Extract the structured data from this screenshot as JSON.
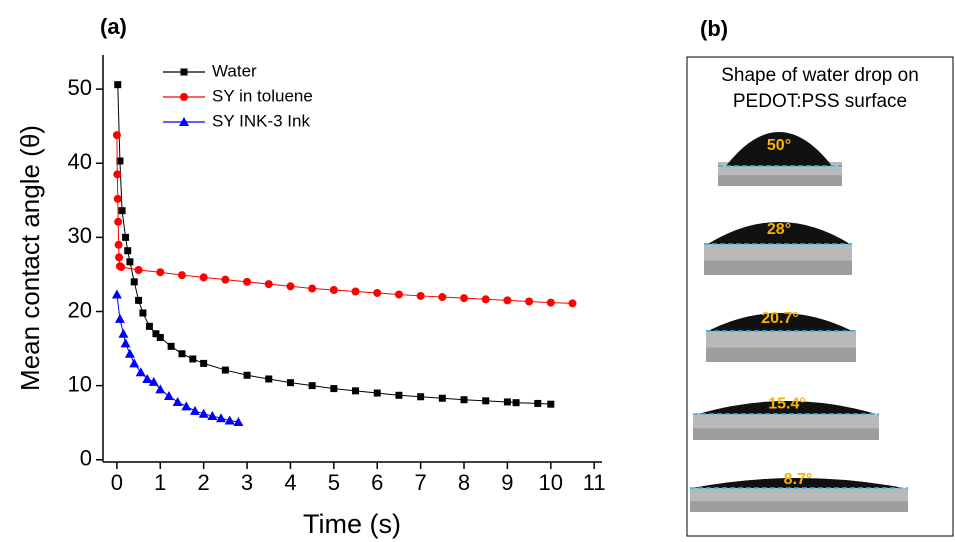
{
  "chart_data": {
    "type": "line",
    "title": "(a)",
    "x_label": "Time (s)",
    "y_label": "Mean contact angle (θ)",
    "xlim": [
      -0.32,
      11.18
    ],
    "ylim": [
      -0.3,
      54.6
    ],
    "xticks": [
      0,
      1,
      2,
      3,
      4,
      5,
      6,
      7,
      8,
      9,
      10,
      11
    ],
    "yticks": [
      0,
      10,
      20,
      30,
      40,
      50
    ],
    "legend": "upper left",
    "series": [
      {
        "name": "Water",
        "color": "#000000",
        "marker": "square",
        "x": [
          0.02,
          0.07,
          0.12,
          0.2,
          0.25,
          0.3,
          0.4,
          0.5,
          0.6,
          0.75,
          0.9,
          1,
          1.25,
          1.5,
          1.75,
          2,
          2.5,
          3,
          3.5,
          4,
          4.5,
          5,
          5.5,
          6,
          6.5,
          7,
          7.5,
          8,
          8.5,
          9,
          9.2,
          9.7,
          10
        ],
        "values": [
          50.6,
          40.3,
          33.6,
          30,
          28.2,
          26.7,
          24,
          21.5,
          19.8,
          18,
          17,
          16.5,
          15.3,
          14.3,
          13.6,
          13,
          12.1,
          11.4,
          10.9,
          10.4,
          10,
          9.6,
          9.3,
          9,
          8.7,
          8.5,
          8.3,
          8.1,
          7.95,
          7.8,
          7.7,
          7.6,
          7.5
        ]
      },
      {
        "name": "SY in toluene",
        "color": "#ff0000",
        "marker": "circle",
        "x": [
          0,
          0.01,
          0.02,
          0.03,
          0.04,
          0.05,
          0.07,
          0.1,
          0.5,
          1,
          1.5,
          2,
          2.5,
          3,
          3.5,
          4,
          4.5,
          5,
          5.5,
          6,
          6.5,
          7,
          7.5,
          8,
          8.5,
          9,
          9.5,
          10,
          10.5
        ],
        "values": [
          43.8,
          38.5,
          35.2,
          32.1,
          29,
          27.3,
          26.1,
          26,
          25.6,
          25.3,
          24.9,
          24.6,
          24.3,
          24,
          23.7,
          23.4,
          23.1,
          22.9,
          22.7,
          22.5,
          22.3,
          22.1,
          21.95,
          21.8,
          21.65,
          21.5,
          21.35,
          21.2,
          21.1
        ]
      },
      {
        "name": "SY INK-3 Ink",
        "color": "#0000ff",
        "marker": "triangle",
        "x": [
          0,
          0.07,
          0.15,
          0.2,
          0.3,
          0.4,
          0.55,
          0.7,
          0.85,
          1,
          1.2,
          1.4,
          1.6,
          1.8,
          2,
          2.2,
          2.4,
          2.6,
          2.8
        ],
        "values": [
          22.3,
          19,
          17,
          15.7,
          14.3,
          13,
          11.8,
          10.9,
          10.5,
          9.5,
          8.6,
          7.8,
          7.2,
          6.6,
          6.2,
          5.9,
          5.6,
          5.3,
          5.1
        ]
      }
    ]
  },
  "panel_b": {
    "title": "(b)",
    "caption": [
      "Shape of water drop on",
      "PEDOT:PSS surface"
    ],
    "drops": [
      "50°",
      "28°",
      "20.7°",
      "15.4°",
      "8.7°"
    ]
  }
}
